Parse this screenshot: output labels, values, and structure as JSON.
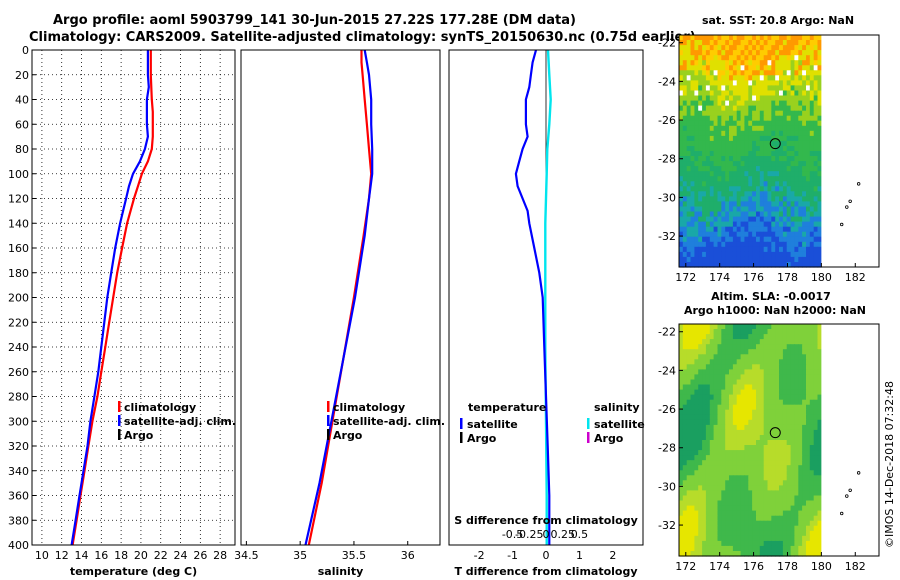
{
  "figure": {
    "title_line1": "Argo profile: aoml 5903799_141 30-Jun-2015 27.22S 177.28E (DM data)",
    "title_line2": "Climatology: CARS2009. Satellite-adjusted climatology: synTS_20150630.nc (0.75d earlier)",
    "credit": "©IMOS 14-Dec-2018 07:32:48",
    "colors": {
      "climatology": "#ff0000",
      "satellite": "#0000ff",
      "argo": "#000000",
      "s_satellite": "#00e5ee",
      "s_argo": "#cc00cc"
    }
  },
  "chart_data": [
    {
      "type": "line",
      "id": "temperature",
      "xlabel": "temperature (deg C)",
      "ylim": [
        400,
        0
      ],
      "xlim": [
        9,
        29.5
      ],
      "xticks": [
        10,
        12,
        14,
        16,
        18,
        20,
        22,
        24,
        26,
        28
      ],
      "yticks": [
        0,
        20,
        40,
        60,
        80,
        100,
        120,
        140,
        160,
        180,
        200,
        220,
        240,
        260,
        280,
        300,
        320,
        340,
        360,
        380,
        400
      ],
      "legend": [
        "climatology",
        "satellite-adj. clim.",
        "Argo"
      ],
      "series": [
        {
          "name": "climatology",
          "color": "#ff0000",
          "depth": [
            0,
            20,
            40,
            50,
            60,
            70,
            80,
            90,
            100,
            110,
            120,
            140,
            160,
            180,
            200,
            220,
            240,
            260,
            280,
            300,
            320,
            340,
            360,
            380,
            400
          ],
          "value": [
            21.0,
            21.0,
            21.1,
            21.2,
            21.2,
            21.2,
            21.1,
            20.7,
            20.1,
            19.7,
            19.3,
            18.6,
            18.1,
            17.6,
            17.2,
            16.8,
            16.4,
            16.0,
            15.6,
            15.1,
            14.7,
            14.3,
            13.9,
            13.5,
            13.1
          ]
        },
        {
          "name": "satellite-adj. clim.",
          "color": "#0000ff",
          "depth": [
            0,
            20,
            30,
            40,
            50,
            60,
            70,
            80,
            90,
            100,
            110,
            120,
            140,
            160,
            180,
            200,
            220,
            240,
            260,
            280,
            300,
            320,
            340,
            360,
            380,
            400
          ],
          "value": [
            20.7,
            20.7,
            20.8,
            20.6,
            20.6,
            20.6,
            20.7,
            20.4,
            19.9,
            19.2,
            18.8,
            18.5,
            17.9,
            17.4,
            17.0,
            16.6,
            16.3,
            16.0,
            15.7,
            15.3,
            14.9,
            14.6,
            14.2,
            13.8,
            13.4,
            13.0
          ]
        }
      ]
    },
    {
      "type": "line",
      "id": "salinity",
      "xlabel": "salinity",
      "ylim": [
        400,
        0
      ],
      "xlim": [
        34.45,
        36.3
      ],
      "xticks": [
        34.5,
        35,
        35.5,
        36
      ],
      "xticklabels": [
        "34.5",
        "35",
        "35.5",
        "36"
      ],
      "legend": [
        "climatology",
        "satellite-adj. clim.",
        "Argo"
      ],
      "series": [
        {
          "name": "climatology",
          "color": "#ff0000",
          "depth": [
            0,
            10,
            20,
            40,
            60,
            80,
            100,
            120,
            150,
            200,
            250,
            300,
            350,
            400
          ],
          "value": [
            35.57,
            35.57,
            35.58,
            35.6,
            35.62,
            35.64,
            35.66,
            35.64,
            35.59,
            35.5,
            35.4,
            35.3,
            35.2,
            35.08
          ]
        },
        {
          "name": "satellite-adj. clim.",
          "color": "#0000ff",
          "depth": [
            0,
            10,
            20,
            40,
            60,
            80,
            100,
            120,
            150,
            200,
            250,
            300,
            350,
            400
          ],
          "value": [
            35.6,
            35.62,
            35.64,
            35.66,
            35.66,
            35.67,
            35.67,
            35.64,
            35.6,
            35.51,
            35.4,
            35.29,
            35.18,
            35.05
          ]
        }
      ]
    },
    {
      "type": "line",
      "id": "difference",
      "xlabel": "T difference from climatology",
      "top_xlabel": "S difference from climatology",
      "ylim": [
        400,
        0
      ],
      "xlim": [
        -2.9,
        2.9
      ],
      "xticks": [
        -2,
        -1,
        0,
        1,
        2
      ],
      "sticks": [
        -0.5,
        -0.25,
        0,
        0.25,
        0.5
      ],
      "sticklabels": [
        "-0.5",
        "-0.25",
        "0",
        "0.25",
        "0.5"
      ],
      "legend_t_title": "temperature",
      "legend_s_title": "salinity",
      "legend_t": [
        "satellite",
        "Argo"
      ],
      "legend_s": [
        "satellite",
        "Argo"
      ],
      "series": [
        {
          "name": "T satellite",
          "color": "#0000ff",
          "depth": [
            0,
            10,
            20,
            30,
            40,
            50,
            60,
            70,
            80,
            90,
            100,
            110,
            120,
            130,
            140,
            160,
            180,
            200,
            240,
            280,
            320,
            360,
            400
          ],
          "value": [
            -0.3,
            -0.4,
            -0.45,
            -0.5,
            -0.6,
            -0.6,
            -0.6,
            -0.55,
            -0.7,
            -0.8,
            -0.9,
            -0.85,
            -0.7,
            -0.55,
            -0.5,
            -0.35,
            -0.2,
            -0.1,
            -0.05,
            0,
            0.05,
            0.1,
            0.1
          ]
        },
        {
          "name": "S satellite",
          "color": "#00e5ee",
          "depth": [
            0,
            20,
            40,
            60,
            80,
            100,
            120,
            140,
            180,
            240,
            300,
            360,
            400
          ],
          "value": [
            0.03,
            0.05,
            0.07,
            0.05,
            0.02,
            0.01,
            0.0,
            -0.01,
            -0.01,
            -0.01,
            0.0,
            0.01,
            0.01
          ]
        }
      ]
    },
    {
      "type": "heatmap",
      "id": "sst_map",
      "title": "sat. SST: 20.8 Argo: NaN",
      "xticks": [
        172,
        174,
        176,
        178,
        180,
        182
      ],
      "yticks": [
        -22,
        -24,
        -26,
        -28,
        -30,
        -32
      ],
      "xlim": [
        171.6,
        183.4
      ],
      "ylim": [
        -33.6,
        -21.6
      ],
      "data_xmax": 180,
      "marker": {
        "lon": 177.28,
        "lat": -27.22
      },
      "islands": [
        [
          182.2,
          -29.3
        ],
        [
          181.7,
          -30.2
        ],
        [
          181.5,
          -30.5
        ],
        [
          181.2,
          -31.4
        ]
      ]
    },
    {
      "type": "heatmap",
      "id": "sla_map",
      "title_line1": "Altim. SLA: -0.0017",
      "title_line2": "Argo h1000: NaN h2000: NaN",
      "xticks": [
        172,
        174,
        176,
        178,
        180,
        182
      ],
      "yticks": [
        -22,
        -24,
        -26,
        -28,
        -30,
        -32
      ],
      "xlim": [
        171.6,
        183.4
      ],
      "ylim": [
        -33.6,
        -21.6
      ],
      "data_xmax": 180,
      "marker": {
        "lon": 177.28,
        "lat": -27.22
      },
      "islands": [
        [
          182.2,
          -29.3
        ],
        [
          181.7,
          -30.2
        ],
        [
          181.5,
          -30.5
        ],
        [
          181.2,
          -31.4
        ]
      ]
    }
  ]
}
